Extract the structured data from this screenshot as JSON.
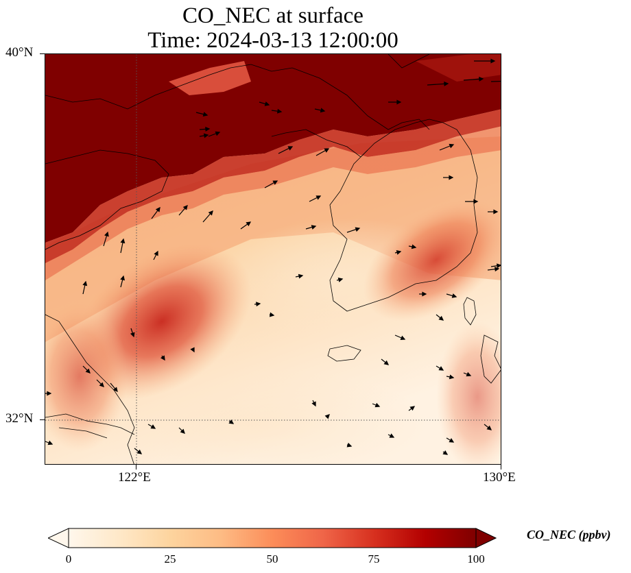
{
  "title_line1": "CO_NEC at surface",
  "title_line2": "Time: 2024-03-13 12:00:00",
  "map": {
    "lat_labels": [
      "40°N",
      "32°N"
    ],
    "lon_labels": [
      "122°E",
      "130°E"
    ],
    "gridlines": "dotted, 122°E and 32°N",
    "field": "CO_NEC",
    "overlay": "wind vectors (arrows)"
  },
  "colorbar": {
    "label": "CO_NEC (ppbv)",
    "ticks": [
      "0",
      "25",
      "50",
      "75",
      "100"
    ],
    "min": 0,
    "max": 100,
    "colormap": [
      "#fff7ec",
      "#fee8c8",
      "#fdd49e",
      "#fdbb84",
      "#fc8d59",
      "#ef6548",
      "#d7301f",
      "#b30000",
      "#7f0000"
    ],
    "extend": "both"
  }
}
